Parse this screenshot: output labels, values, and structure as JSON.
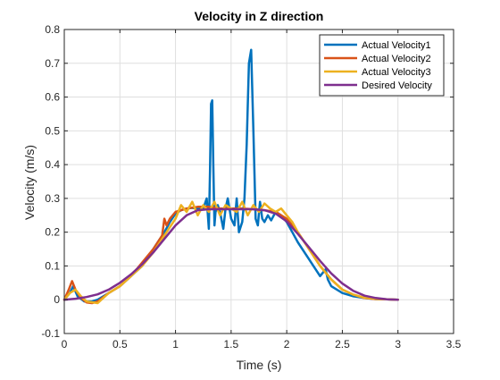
{
  "chart_data": {
    "type": "line",
    "title": "Velocity in Z direction",
    "xlabel": "Time (s)",
    "ylabel": "Velocity (m/s)",
    "xlim": [
      0,
      3.5
    ],
    "ylim": [
      -0.1,
      0.8
    ],
    "xticks": [
      0,
      0.5,
      1,
      1.5,
      2,
      2.5,
      3,
      3.5
    ],
    "xtick_labels": [
      "0",
      "0.5",
      "1",
      "1.5",
      "2",
      "2.5",
      "3",
      "3.5"
    ],
    "yticks": [
      -0.1,
      0,
      0.1,
      0.2,
      0.3,
      0.4,
      0.5,
      0.6,
      0.7,
      0.8
    ],
    "ytick_labels": [
      "-0.1",
      "0",
      "0.1",
      "0.2",
      "0.3",
      "0.4",
      "0.5",
      "0.6",
      "0.7",
      "0.8"
    ],
    "grid": true,
    "legend_position": "top-right",
    "series": [
      {
        "name": "Actual Velocity1",
        "color": "#0072BD",
        "x": [
          0,
          0.05,
          0.08,
          0.12,
          0.18,
          0.25,
          0.3,
          0.4,
          0.5,
          0.6,
          0.7,
          0.8,
          0.9,
          0.95,
          1.0,
          1.05,
          1.1,
          1.15,
          1.2,
          1.25,
          1.28,
          1.3,
          1.31,
          1.32,
          1.33,
          1.34,
          1.35,
          1.36,
          1.38,
          1.4,
          1.43,
          1.45,
          1.47,
          1.5,
          1.53,
          1.55,
          1.57,
          1.6,
          1.62,
          1.64,
          1.66,
          1.68,
          1.7,
          1.72,
          1.74,
          1.76,
          1.78,
          1.8,
          1.83,
          1.86,
          1.9,
          1.95,
          2.0,
          2.05,
          2.1,
          2.2,
          2.3,
          2.35,
          2.37,
          2.4,
          2.5,
          2.6,
          2.7,
          2.8,
          2.9,
          3.0
        ],
        "y": [
          0,
          0.02,
          0.04,
          0.01,
          -0.005,
          -0.005,
          0,
          0.02,
          0.04,
          0.07,
          0.1,
          0.15,
          0.2,
          0.23,
          0.255,
          0.265,
          0.27,
          0.272,
          0.27,
          0.27,
          0.3,
          0.21,
          0.38,
          0.58,
          0.59,
          0.4,
          0.22,
          0.26,
          0.28,
          0.26,
          0.21,
          0.27,
          0.3,
          0.24,
          0.22,
          0.3,
          0.2,
          0.23,
          0.3,
          0.46,
          0.7,
          0.74,
          0.5,
          0.24,
          0.22,
          0.29,
          0.24,
          0.23,
          0.25,
          0.235,
          0.26,
          0.25,
          0.23,
          0.2,
          0.17,
          0.12,
          0.07,
          0.09,
          0.06,
          0.04,
          0.02,
          0.01,
          0.005,
          0.002,
          0.001,
          0
        ]
      },
      {
        "name": "Actual Velocity2",
        "color": "#D95319",
        "x": [
          0,
          0.04,
          0.07,
          0.1,
          0.15,
          0.2,
          0.25,
          0.3,
          0.4,
          0.5,
          0.6,
          0.7,
          0.8,
          0.88,
          0.9,
          0.92,
          0.95,
          1.0,
          1.1,
          1.2,
          1.3,
          1.4,
          1.5,
          1.6,
          1.7,
          1.8,
          1.9,
          2.0,
          2.1,
          2.2,
          2.3,
          2.4,
          2.5,
          2.6,
          2.7,
          2.8,
          2.9,
          3.0
        ],
        "y": [
          0,
          0.03,
          0.055,
          0.03,
          0.005,
          -0.008,
          -0.01,
          -0.005,
          0.02,
          0.04,
          0.07,
          0.11,
          0.15,
          0.19,
          0.24,
          0.22,
          0.24,
          0.26,
          0.27,
          0.275,
          0.275,
          0.27,
          0.27,
          0.27,
          0.268,
          0.265,
          0.26,
          0.24,
          0.2,
          0.15,
          0.1,
          0.06,
          0.03,
          0.015,
          0.005,
          0.002,
          0.001,
          0
        ]
      },
      {
        "name": "Actual Velocity3",
        "color": "#EDB120",
        "x": [
          0,
          0.05,
          0.1,
          0.15,
          0.2,
          0.3,
          0.4,
          0.5,
          0.6,
          0.7,
          0.8,
          0.9,
          1.0,
          1.05,
          1.1,
          1.15,
          1.2,
          1.25,
          1.3,
          1.35,
          1.4,
          1.45,
          1.5,
          1.55,
          1.6,
          1.65,
          1.7,
          1.75,
          1.8,
          1.85,
          1.9,
          1.95,
          2.0,
          2.05,
          2.1,
          2.2,
          2.3,
          2.4,
          2.5,
          2.6,
          2.7,
          2.8,
          2.9,
          3.0
        ],
        "y": [
          0,
          0.02,
          0.03,
          0.01,
          -0.005,
          -0.01,
          0.02,
          0.04,
          0.07,
          0.1,
          0.14,
          0.19,
          0.24,
          0.28,
          0.26,
          0.29,
          0.25,
          0.28,
          0.26,
          0.29,
          0.25,
          0.28,
          0.27,
          0.26,
          0.29,
          0.25,
          0.28,
          0.26,
          0.285,
          0.27,
          0.26,
          0.27,
          0.25,
          0.23,
          0.2,
          0.15,
          0.1,
          0.06,
          0.03,
          0.015,
          0.006,
          0.003,
          0.001,
          0
        ]
      },
      {
        "name": "Desired Velocity",
        "color": "#7E2F8E",
        "x": [
          0,
          0.1,
          0.2,
          0.3,
          0.4,
          0.5,
          0.6,
          0.7,
          0.8,
          0.9,
          1.0,
          1.1,
          1.2,
          1.3,
          1.4,
          1.5,
          1.6,
          1.7,
          1.8,
          1.9,
          2.0,
          2.1,
          2.2,
          2.3,
          2.4,
          2.5,
          2.6,
          2.7,
          2.8,
          2.9,
          3.0
        ],
        "y": [
          0,
          0.003,
          0.008,
          0.016,
          0.03,
          0.05,
          0.075,
          0.105,
          0.14,
          0.18,
          0.22,
          0.25,
          0.265,
          0.268,
          0.268,
          0.268,
          0.268,
          0.268,
          0.265,
          0.255,
          0.232,
          0.195,
          0.155,
          0.115,
          0.078,
          0.048,
          0.026,
          0.012,
          0.005,
          0.0015,
          0
        ]
      }
    ]
  }
}
